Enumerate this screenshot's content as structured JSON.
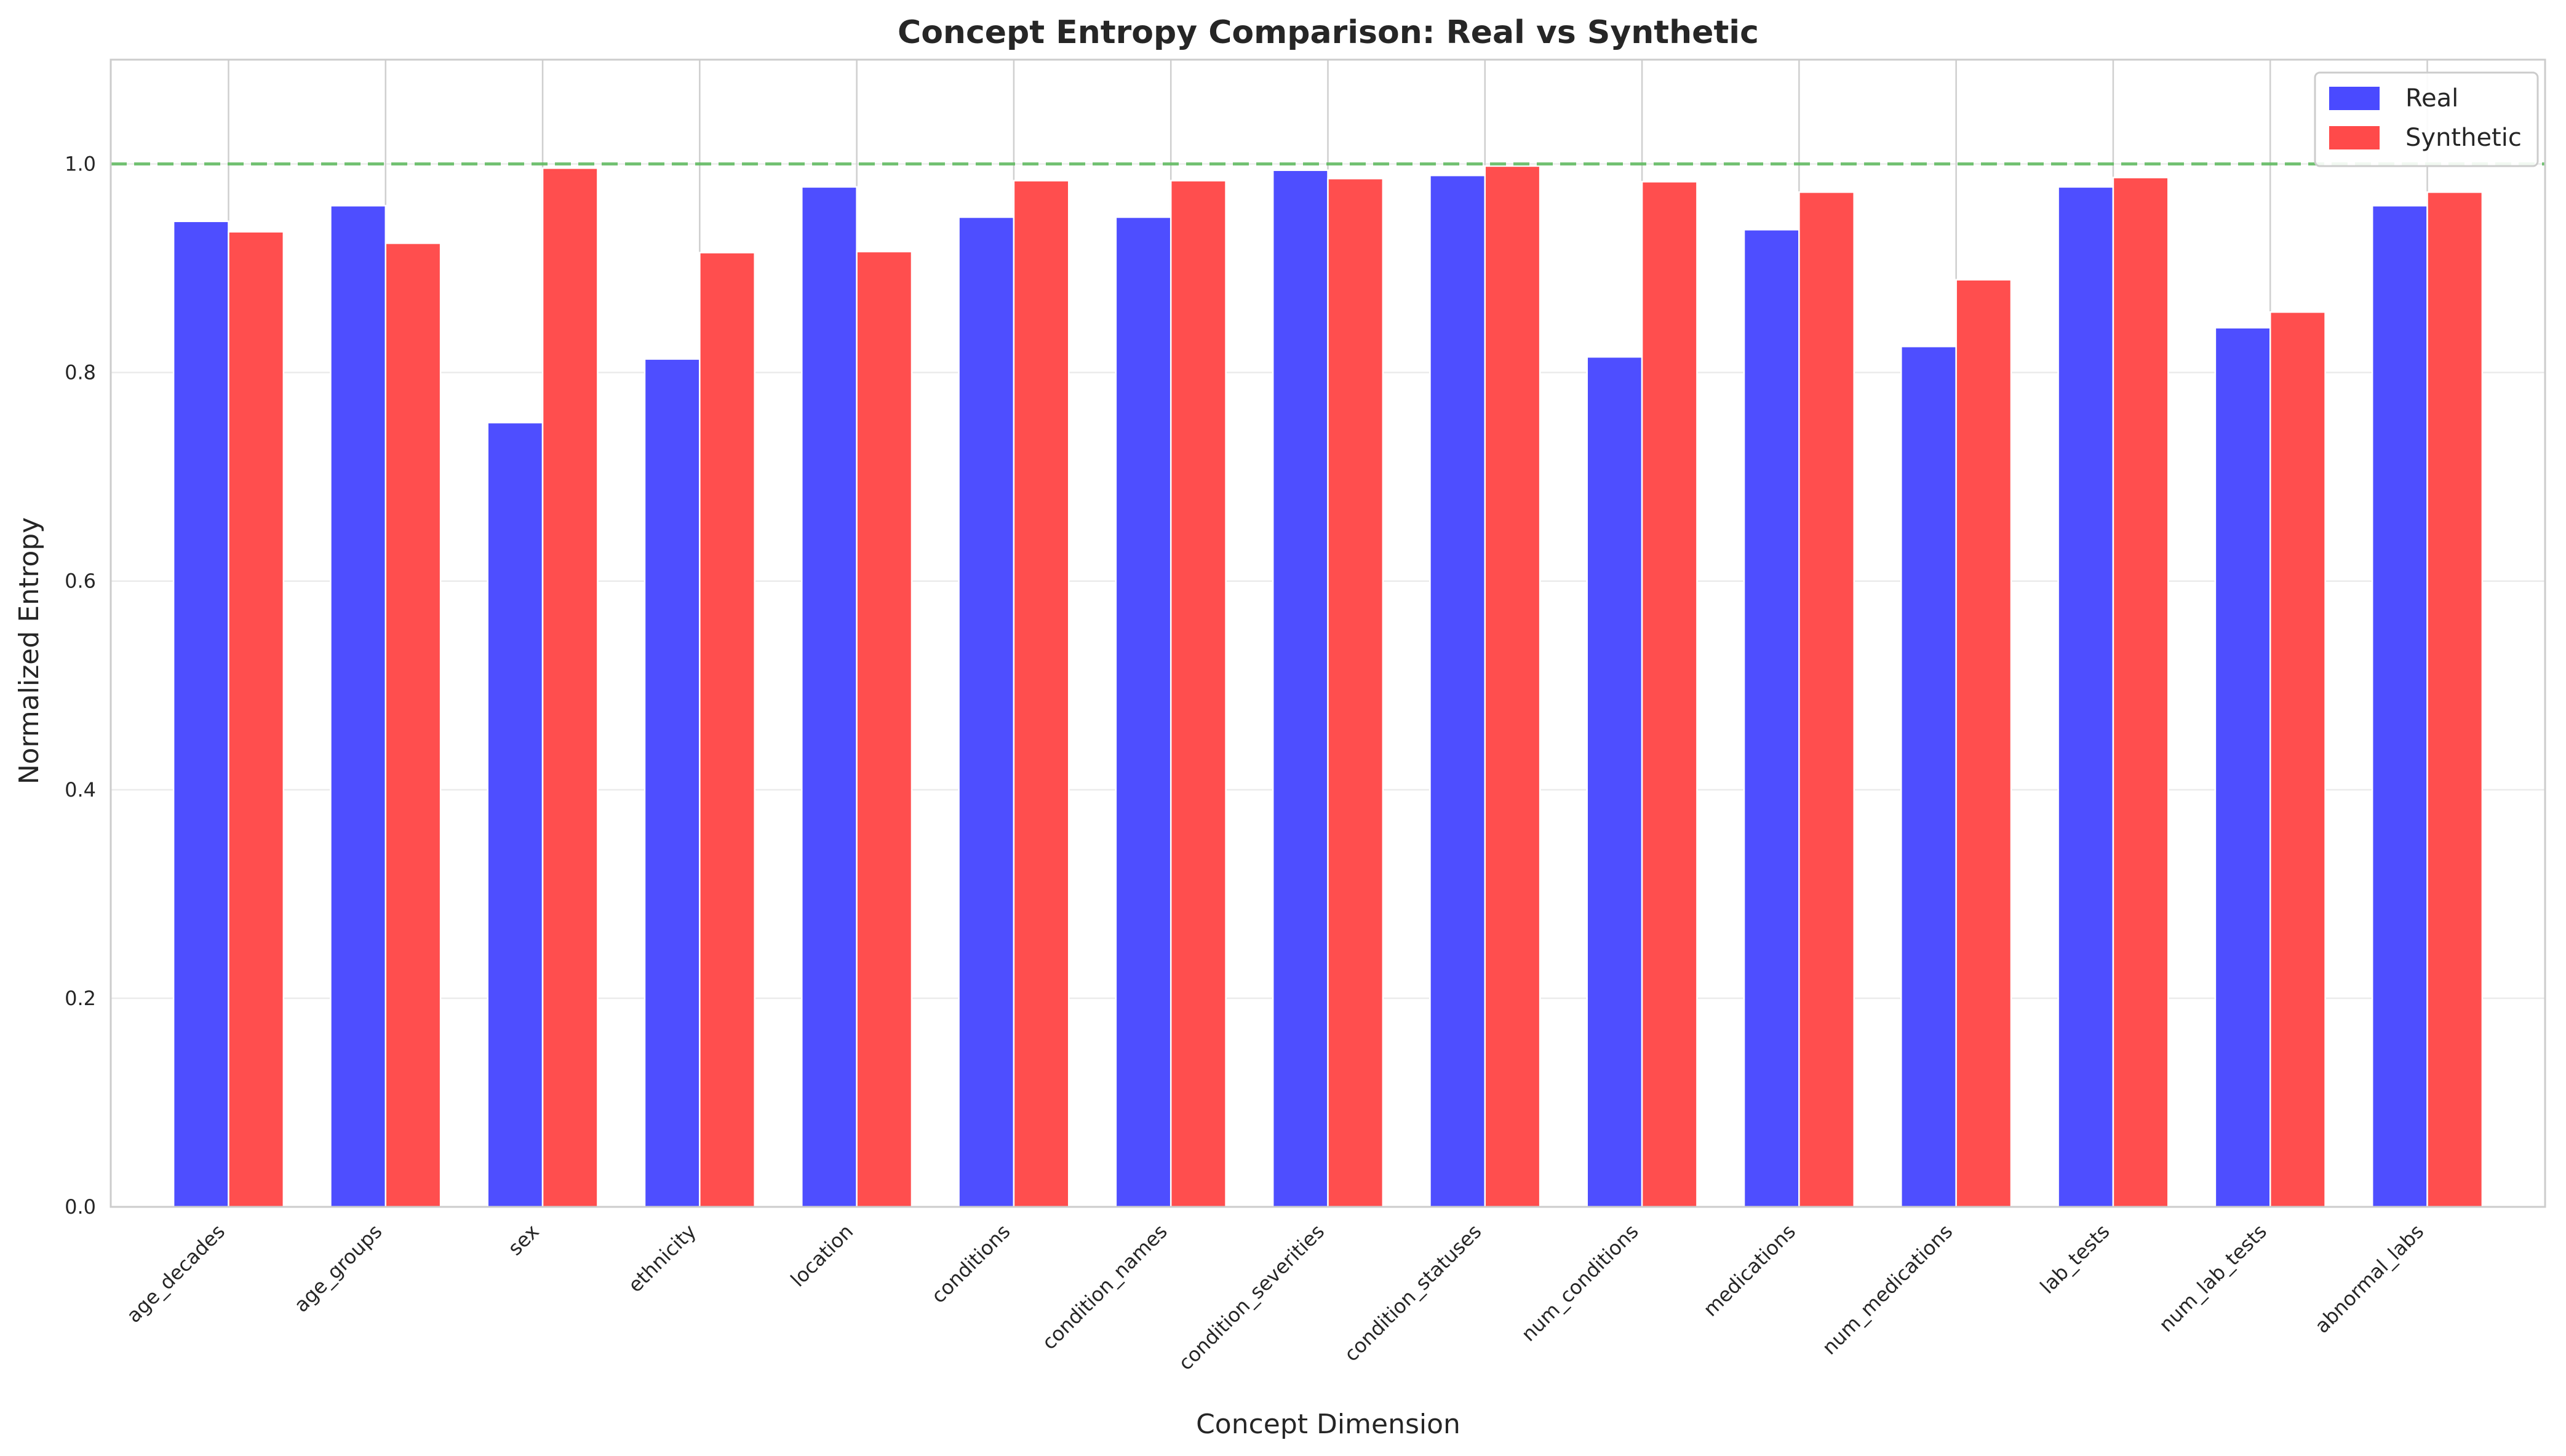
{
  "chart_data": {
    "type": "bar",
    "title": "Concept Entropy Comparison: Real vs Synthetic",
    "xlabel": "Concept Dimension",
    "ylabel": "Normalized Entropy",
    "ylim": [
      0,
      1.1
    ],
    "yticks": [
      "0.0",
      "0.2",
      "0.4",
      "0.6",
      "0.8",
      "1.0"
    ],
    "grid": true,
    "legend_position": "top-right",
    "reference_line": {
      "y": 1.0,
      "style": "dashed",
      "color": "#5cb85c"
    },
    "categories": [
      "age_decades",
      "age_groups",
      "sex",
      "ethnicity",
      "location",
      "conditions",
      "condition_names",
      "condition_severities",
      "condition_statuses",
      "num_conditions",
      "medications",
      "num_medications",
      "lab_tests",
      "num_lab_tests",
      "abnormal_labs"
    ],
    "series": [
      {
        "name": "Real",
        "color": "#4a4aff",
        "values": [
          0.945,
          0.96,
          0.752,
          0.813,
          0.978,
          0.949,
          0.949,
          0.994,
          0.989,
          0.815,
          0.937,
          0.825,
          0.978,
          0.843,
          0.96
        ]
      },
      {
        "name": "Synthetic",
        "color": "#ff4a4a",
        "values": [
          0.935,
          0.924,
          0.996,
          0.915,
          0.916,
          0.984,
          0.984,
          0.986,
          0.998,
          0.983,
          0.973,
          0.889,
          0.987,
          0.858,
          0.973
        ]
      }
    ]
  }
}
